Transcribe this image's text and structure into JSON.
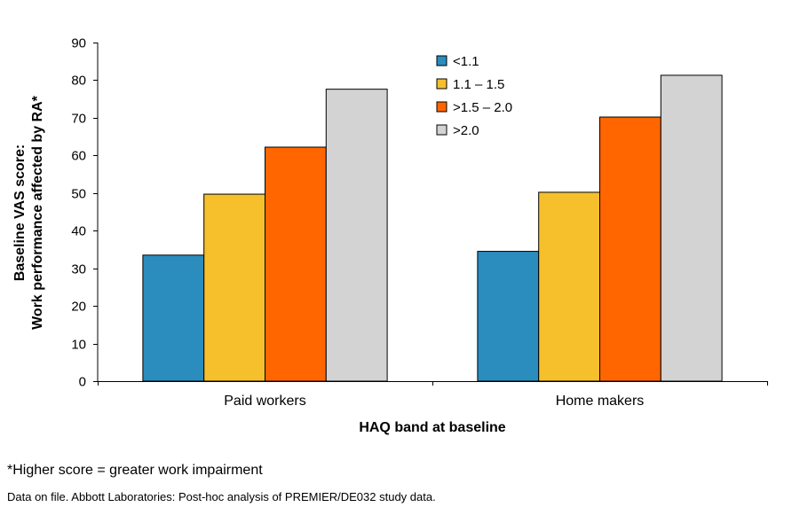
{
  "chart_data": {
    "type": "bar",
    "categories": [
      "Paid workers",
      "Home makers"
    ],
    "series": [
      {
        "name": "<1.1",
        "color": "#2b8cbe",
        "values": [
          33.5,
          34.5
        ]
      },
      {
        "name": "1.1 – 1.5",
        "color": "#f5c02c",
        "values": [
          49.7,
          50.2
        ]
      },
      {
        "name": ">1.5 – 2.0",
        "color": "#ff6600",
        "values": [
          62.2,
          70.2
        ]
      },
      {
        "name": ">2.0",
        "color": "#d3d3d3",
        "values": [
          77.6,
          81.3
        ]
      }
    ],
    "ylim": [
      0,
      90
    ],
    "yticks": [
      0,
      10,
      20,
      30,
      40,
      50,
      60,
      70,
      80,
      90
    ],
    "xlabel": "HAQ band at baseline",
    "ylabel_line1": "Baseline VAS score:",
    "ylabel_line2": "Work performance affected by RA*",
    "legend_position": "top-center",
    "grid": false
  },
  "footnote": "*Higher score = greater work impairment",
  "source": "Data on file. Abbott Laboratories: Post-hoc analysis of PREMIER/DE032 study data."
}
